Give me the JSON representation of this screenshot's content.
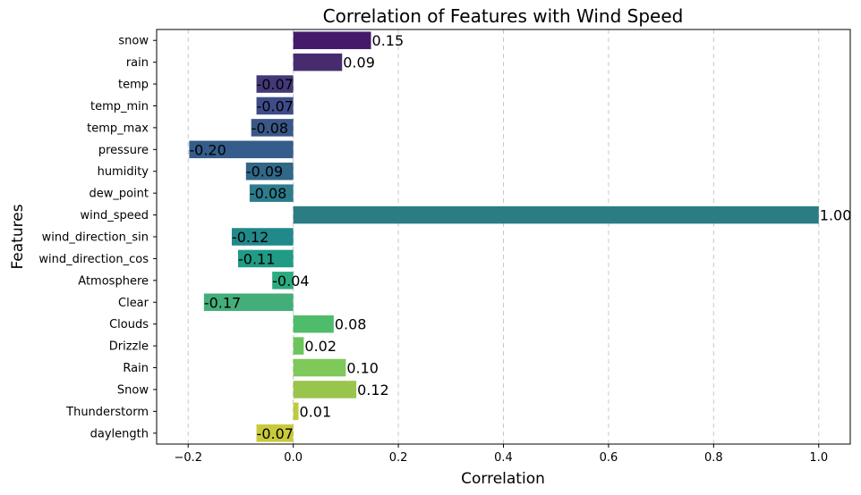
{
  "chart_data": {
    "type": "bar",
    "orientation": "horizontal",
    "title": "Correlation of Features with Wind Speed",
    "xlabel": "Correlation",
    "ylabel": "Features",
    "xlim": [
      -0.26,
      1.06
    ],
    "xticks": [
      -0.2,
      0.0,
      0.2,
      0.4,
      0.6,
      0.8,
      1.0
    ],
    "xtick_labels": [
      "−0.2",
      "0.0",
      "0.2",
      "0.4",
      "0.6",
      "0.8",
      "1.0"
    ],
    "grid": "x-dashed",
    "categories": [
      "snow",
      "rain",
      "temp",
      "temp_min",
      "temp_max",
      "pressure",
      "humidity",
      "dew_point",
      "wind_speed",
      "wind_direction_sin",
      "wind_direction_cos",
      "Atmosphere",
      "Clear",
      "Clouds",
      "Drizzle",
      "Rain",
      "Snow",
      "Thunderstorm",
      "daylength"
    ],
    "values": [
      0.148,
      0.093,
      -0.07,
      -0.07,
      -0.08,
      -0.198,
      -0.09,
      -0.083,
      1.0,
      -0.117,
      -0.105,
      -0.04,
      -0.17,
      0.077,
      0.02,
      0.1,
      0.12,
      0.01,
      -0.07
    ],
    "labels": [
      "0.15",
      "0.09",
      "-0.07",
      "-0.07",
      "-0.08",
      "-0.20",
      "-0.09",
      "-0.08",
      "1.00",
      "-0.12",
      "-0.11",
      "-0.04",
      "-0.17",
      "0.08",
      "0.02",
      "0.10",
      "0.12",
      "0.01",
      "-0.07"
    ],
    "colors": [
      "#461a6b",
      "#482b6f",
      "#443978",
      "#3e4c89",
      "#3a5788",
      "#355d8b",
      "#316787",
      "#2c7c8c",
      "#2b7d84",
      "#22898a",
      "#209b85",
      "#2aab80",
      "#44ae7a",
      "#4fbc6b",
      "#6cc55c",
      "#7fc85a",
      "#9ac54d",
      "#bdcc3f",
      "#c9c93c"
    ]
  }
}
